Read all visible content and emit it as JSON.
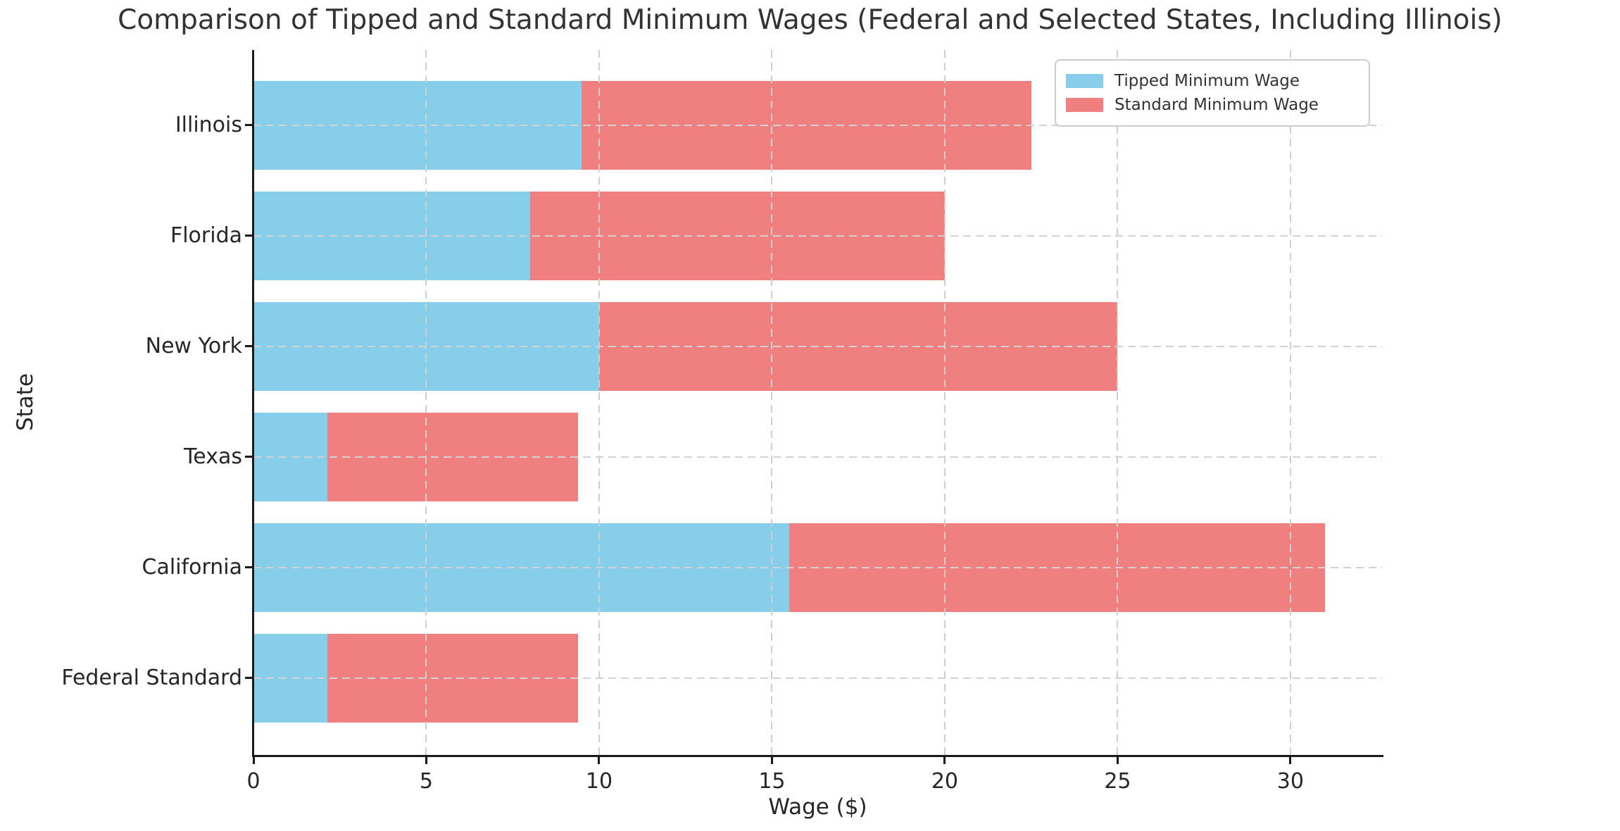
{
  "title": "Comparison of Tipped and Standard Minimum Wages (Federal and Selected States, Including Illinois)",
  "chart_data": {
    "type": "bar",
    "orientation": "horizontal",
    "stacked": true,
    "title": "Comparison of Tipped and Standard Minimum Wages (Federal and Selected States, Including Illinois)",
    "xlabel": "Wage ($)",
    "ylabel": "State",
    "categories": [
      "Illinois",
      "Florida",
      "New York",
      "Texas",
      "California",
      "Federal Standard"
    ],
    "series": [
      {
        "name": "Tipped Minimum Wage",
        "color": "#87CEEB",
        "values": [
          9.5,
          8.0,
          10.0,
          2.13,
          15.5,
          2.13
        ]
      },
      {
        "name": "Standard Minimum Wage",
        "color": "#F08080",
        "values": [
          13.0,
          12.0,
          15.0,
          7.25,
          15.5,
          7.25
        ]
      }
    ],
    "bar_totals": [
      22.5,
      20.0,
      25.0,
      9.38,
      31.0,
      9.38
    ],
    "xticks": [
      0,
      5,
      10,
      15,
      20,
      25,
      30
    ],
    "xlim": [
      0,
      32.65
    ],
    "grid": "dashed light-gray gridlines on both axes, drawn over bars",
    "legend_position": "upper right inside plot"
  },
  "colors": {
    "tipped": "#87CEEB",
    "standard": "#F08080",
    "grid": "#cfcfcf",
    "spine": "#1a1a1a",
    "text": "#262626",
    "background": "#ffffff"
  }
}
